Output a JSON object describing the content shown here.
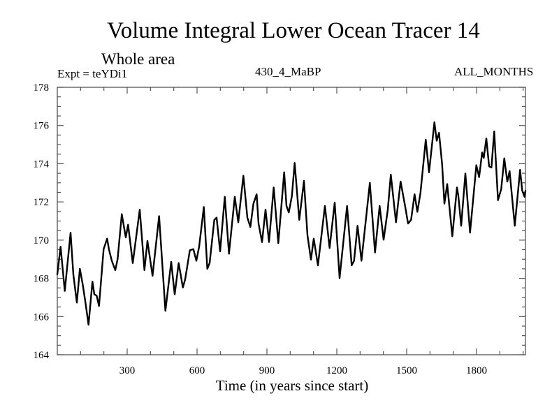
{
  "chart_data": {
    "type": "line",
    "title": "Volume Integral Lower Ocean Tracer 14",
    "subtitle": "Whole area",
    "annotations": {
      "experiment": "Expt = teYDi1",
      "run": "430_4_MaBP",
      "months": "ALL_MONTHS"
    },
    "xlabel": "Time (in years since start)",
    "ylabel": "",
    "xlim": [
      0,
      2010
    ],
    "ylim": [
      164,
      178
    ],
    "x_ticks_major": [
      300,
      600,
      900,
      1200,
      1500,
      1800
    ],
    "x_tick_labels": [
      "300",
      "600",
      "900",
      "1200",
      "1500",
      "1800"
    ],
    "x_ticks_minor_step": 100,
    "y_ticks_major": [
      164,
      166,
      168,
      170,
      172,
      174,
      176,
      178
    ],
    "y_tick_labels": [
      "164",
      "166",
      "168",
      "170",
      "172",
      "174",
      "176",
      "178"
    ],
    "y_ticks_minor_step": 0.5,
    "grid": false,
    "legend": "none",
    "line_color": "#000000",
    "series": [
      {
        "name": "Volume Integral Lower Ocean Tracer 14",
        "x": [
          0,
          14,
          32,
          57,
          69,
          84,
          97,
          109,
          121,
          134,
          151,
          159,
          169,
          179,
          199,
          214,
          222,
          234,
          249,
          259,
          277,
          294,
          304,
          324,
          354,
          374,
          387,
          409,
          437,
          464,
          489,
          504,
          521,
          539,
          549,
          569,
          584,
          597,
          609,
          629,
          644,
          654,
          674,
          684,
          699,
          719,
          737,
          762,
          777,
          799,
          816,
          829,
          842,
          856,
          864,
          879,
          894,
          909,
          929,
          949,
          974,
          984,
          994,
          1007,
          1019,
          1039,
          1059,
          1074,
          1089,
          1101,
          1119,
          1149,
          1169,
          1191,
          1212,
          1244,
          1264,
          1274,
          1289,
          1306,
          1342,
          1364,
          1384,
          1401,
          1419,
          1432,
          1454,
          1474,
          1494,
          1506,
          1519,
          1534,
          1546,
          1559,
          1582,
          1596,
          1619,
          1629,
          1639,
          1652,
          1662,
          1674,
          1696,
          1716,
          1722,
          1734,
          1752,
          1772,
          1799,
          1811,
          1824,
          1831,
          1842,
          1854,
          1864,
          1876,
          1892,
          1906,
          1919,
          1932,
          1942,
          1964,
          1987,
          1996,
          2006,
          2010
        ],
        "y": [
          168.2,
          169.66,
          167.34,
          170.39,
          168.19,
          166.73,
          168.5,
          167.7,
          166.73,
          165.57,
          167.83,
          167.16,
          167.1,
          166.55,
          169.53,
          170.08,
          169.5,
          168.92,
          168.43,
          169.0,
          171.36,
          170.14,
          170.81,
          168.8,
          171.6,
          168.43,
          169.96,
          168.13,
          171.26,
          166.3,
          168.86,
          167.16,
          168.8,
          167.52,
          167.95,
          169.47,
          169.53,
          168.92,
          169.66,
          171.73,
          168.5,
          168.8,
          171.06,
          171.18,
          169.41,
          172.27,
          169.29,
          172.27,
          170.93,
          173.37,
          171.18,
          170.69,
          171.91,
          172.4,
          170.87,
          169.9,
          171.6,
          169.9,
          172.76,
          169.84,
          173.55,
          171.79,
          171.45,
          172.3,
          174.04,
          171.06,
          173.1,
          170.26,
          168.98,
          170.08,
          168.68,
          171.79,
          169.59,
          171.97,
          168.01,
          171.79,
          168.68,
          168.92,
          170.75,
          168.92,
          173.0,
          169.35,
          171.79,
          170.02,
          171.6,
          173.43,
          170.93,
          173.07,
          171.73,
          170.87,
          171.06,
          172.4,
          171.48,
          172.46,
          175.26,
          173.55,
          176.17,
          175.2,
          175.62,
          173.98,
          171.91,
          172.94,
          170.2,
          172.76,
          172.3,
          170.75,
          173.49,
          170.39,
          173.92,
          173.3,
          174.59,
          174.3,
          175.32,
          173.86,
          173.8,
          175.69,
          172.09,
          172.67,
          174.28,
          173.06,
          173.61,
          170.75,
          173.68,
          172.6,
          172.27,
          172.58
        ]
      }
    ]
  }
}
